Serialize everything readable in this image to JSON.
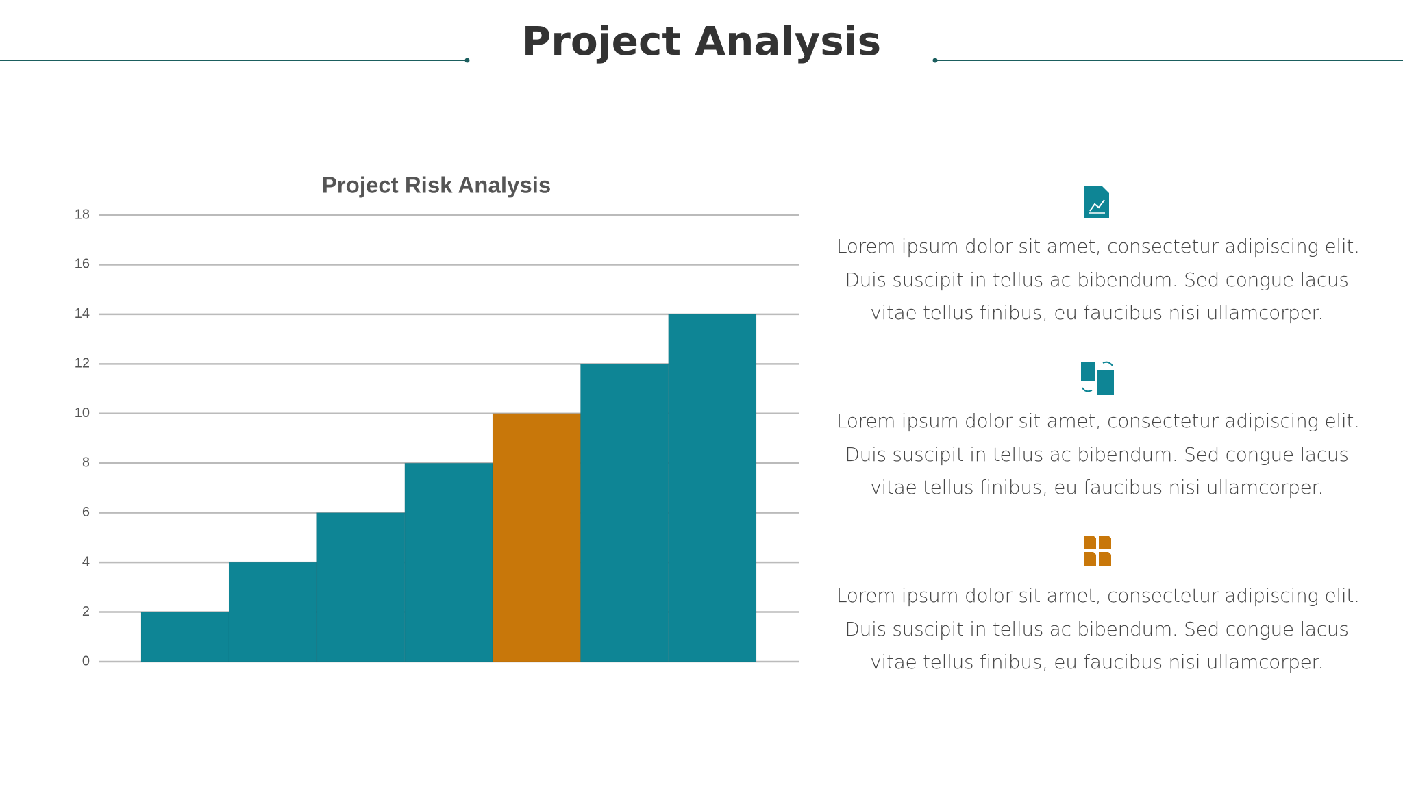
{
  "title": "Project Analysis",
  "chart_data": {
    "type": "bar",
    "title": "Project Risk Analysis",
    "categories": [
      null,
      null,
      null,
      null,
      null,
      null,
      null
    ],
    "values": [
      2,
      4,
      6,
      8,
      10,
      12,
      14
    ],
    "colors": [
      "#0e8595",
      "#0e8595",
      "#0e8595",
      "#0e8595",
      "#c8770a",
      "#0e8595",
      "#0e8595"
    ],
    "ylim": [
      0,
      18
    ],
    "yticks": [
      0,
      2,
      4,
      6,
      8,
      10,
      12,
      14,
      16,
      18
    ],
    "grid": true
  },
  "items": [
    {
      "lines": [
        "Lorem ipsum dolor sit amet, consectetur adipiscing elit.",
        "Duis suscipit in tellus ac bibendum. Sed congue lacus",
        "vitae tellus finibus, eu faucibus nisi ullamcorper."
      ]
    },
    {
      "lines": [
        "Lorem ipsum dolor sit amet, consectetur adipiscing elit.",
        "Duis suscipit in tellus ac bibendum. Sed congue lacus",
        "vitae tellus finibus, eu faucibus nisi ullamcorper."
      ]
    },
    {
      "lines": [
        "Lorem ipsum dolor sit amet, consectetur adipiscing elit.",
        "Duis suscipit in tellus ac bibendum. Sed congue lacus",
        "vitae tellus finibus, eu faucibus nisi ullamcorper."
      ]
    }
  ]
}
